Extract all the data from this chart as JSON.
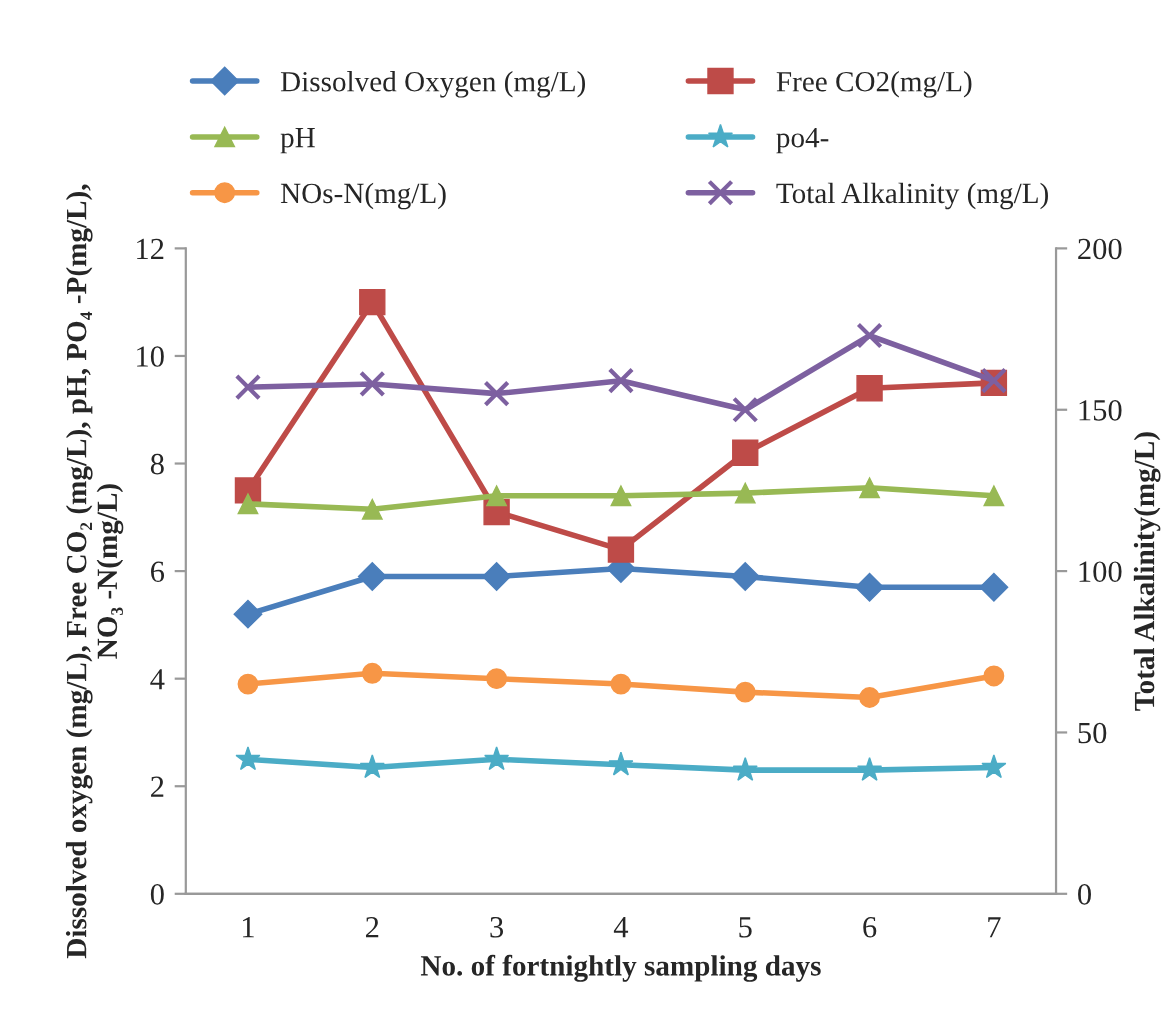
{
  "chart_data": {
    "type": "line",
    "xlabel": "No. of fortnightly sampling days",
    "ylabel": "Dissolved oxygen (mg/L), Free CO₂ (mg/L), pH, PO₄ -P(mg/L),\nNO₃ -N(mg/L)",
    "y2label": "Total Alkalinity(mg/L)",
    "categories": [
      "1",
      "2",
      "3",
      "4",
      "5",
      "6",
      "7"
    ],
    "ylim": [
      0,
      12
    ],
    "yticks": [
      0,
      2,
      4,
      6,
      8,
      10,
      12
    ],
    "y2lim": [
      0,
      200
    ],
    "y2ticks": [
      0,
      50,
      100,
      150,
      200
    ],
    "grid": false,
    "legend": "top",
    "series": [
      {
        "name": "Dissolved Oxygen (mg/L)",
        "color": "#4a7ebb",
        "marker": "diamond",
        "values": [
          5.2,
          5.9,
          5.9,
          6.05,
          5.9,
          5.7,
          5.7
        ]
      },
      {
        "name": "Free CO2(mg/L)",
        "color": "#be4b48",
        "marker": "square",
        "values": [
          7.5,
          11.0,
          7.1,
          6.4,
          8.2,
          9.4,
          9.5
        ]
      },
      {
        "name": "pH",
        "color": "#98b954",
        "marker": "triangle",
        "values": [
          7.25,
          7.15,
          7.4,
          7.4,
          7.45,
          7.55,
          7.4
        ]
      },
      {
        "name": "po4-",
        "color": "#4bacc6",
        "marker": "star",
        "values": [
          2.5,
          2.35,
          2.5,
          2.4,
          2.3,
          2.3,
          2.35
        ]
      },
      {
        "name": "NOs-N(mg/L)",
        "color": "#f79646",
        "marker": "circle",
        "values": [
          3.9,
          4.1,
          4.0,
          3.9,
          3.75,
          3.65,
          4.05
        ]
      },
      {
        "name": "Total Alkalinity (mg/L)",
        "color": "#7d60a0",
        "marker": "cross",
        "axis": "y2",
        "values": [
          157,
          158,
          155,
          159,
          150,
          173,
          159
        ]
      }
    ]
  }
}
